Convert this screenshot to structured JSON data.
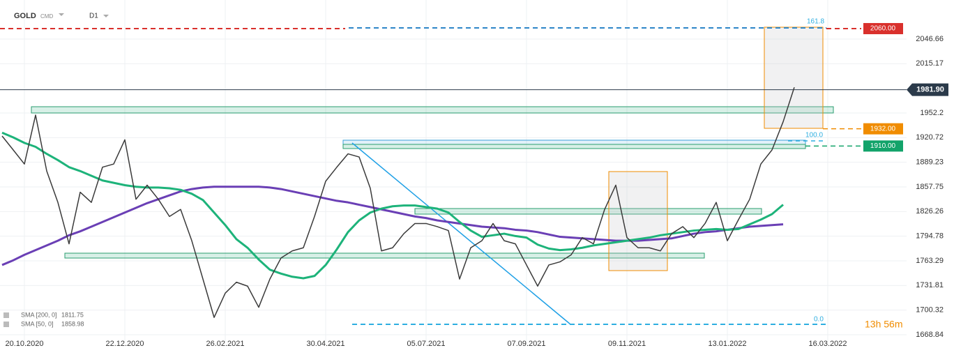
{
  "header": {
    "symbol": "GOLD",
    "instrument_type": "CMD",
    "timeframe": "D1"
  },
  "chart_data": {
    "type": "line",
    "categories": [
      null,
      null,
      "20.10.2020",
      null,
      null,
      null,
      null,
      null,
      null,
      null,
      null,
      "22.12.2020",
      null,
      null,
      null,
      null,
      null,
      null,
      null,
      null,
      "26.02.2021",
      null,
      null,
      null,
      null,
      null,
      null,
      null,
      null,
      "30.04.2021",
      null,
      null,
      null,
      null,
      null,
      null,
      null,
      null,
      "05.07.2021",
      null,
      null,
      null,
      null,
      null,
      null,
      null,
      null,
      "07.09.2021",
      null,
      null,
      null,
      null,
      null,
      null,
      null,
      null,
      "09.11.2021",
      null,
      null,
      null,
      null,
      null,
      null,
      null,
      null,
      "13.01.2022",
      null,
      null,
      null,
      null,
      null,
      null,
      null,
      null,
      "16.03.2022"
    ],
    "values": [
      1922.8,
      1905,
      1887,
      1949.5,
      1878,
      1838,
      1785,
      1851,
      1838,
      1883,
      1887,
      1918,
      1842,
      1860,
      1842,
      1820,
      1829,
      1789,
      1740,
      1691,
      1722,
      1736,
      1731,
      1704,
      1740,
      1767,
      1776,
      1780,
      1820,
      1865,
      1883,
      1900,
      1896,
      1856,
      1776,
      1780,
      1798,
      1811,
      1811,
      1807,
      1802,
      1740,
      1780,
      1789,
      1811,
      1789,
      1785,
      1758,
      1731,
      1758,
      1762,
      1771,
      1793,
      1785,
      1829,
      1860,
      1793,
      1780,
      1780,
      1776,
      1798,
      1807,
      1793,
      1811,
      1838,
      1789,
      1816,
      1842,
      1887,
      1905,
      1941,
      1985,
      null,
      null,
      null
    ],
    "color": "#3a3a3a",
    "series": [
      {
        "name": "SMA [200, 0]",
        "legend_value": 1811.75,
        "color": "#6a3fb5",
        "values": [
          1758,
          1764,
          1771,
          1777,
          1783,
          1789,
          1796,
          1801,
          1807,
          1813,
          1819,
          1825,
          1831,
          1837,
          1842,
          1847,
          1852,
          1855,
          1857,
          1858,
          1858,
          1858,
          1858,
          1858,
          1857,
          1855,
          1852,
          1849,
          1846,
          1843,
          1840,
          1838,
          1835,
          1832,
          1829,
          1826,
          1823,
          1820,
          1818,
          1815,
          1813,
          1811,
          1809,
          1807,
          1806,
          1805,
          1803,
          1802,
          1800,
          1797,
          1794,
          1793,
          1792,
          1791,
          1790,
          1789,
          1789,
          1789,
          1790,
          1791,
          1792,
          1795,
          1798,
          1800,
          1801,
          1803,
          1805,
          1807,
          1808,
          1809,
          1810,
          null,
          null,
          null,
          null
        ]
      },
      {
        "name": "SMA [50, 0]",
        "legend_value": 1858.98,
        "color": "#1db37a",
        "values": [
          1927,
          1921,
          1914,
          1909,
          1900,
          1892,
          1883,
          1878,
          1872,
          1866,
          1863,
          1860,
          1858,
          1857,
          1857,
          1856,
          1854,
          1849,
          1841,
          1825,
          1809,
          1791,
          1780,
          1765,
          1752,
          1747,
          1743,
          1741,
          1744,
          1758,
          1778,
          1800,
          1815,
          1825,
          1830,
          1833,
          1834,
          1834,
          1832,
          1830,
          1825,
          1813,
          1802,
          1794,
          1796,
          1798,
          1795,
          1793,
          1784,
          1779,
          1777,
          1778,
          1780,
          1783,
          1785,
          1787,
          1789,
          1791,
          1793,
          1796,
          1798,
          1800,
          1802,
          1803,
          1804,
          1803,
          1804,
          1810,
          1816,
          1823,
          1835,
          null,
          null,
          null,
          null
        ]
      }
    ],
    "ylim": [
      1659.93,
      2096.56
    ],
    "yticks": [
      2046.66,
      2015.17,
      1952.2,
      1920.72,
      1889.23,
      1857.75,
      1826.26,
      1794.78,
      1763.29,
      1731.81,
      1700.32,
      1668.84
    ],
    "grid": true,
    "levels": [
      {
        "value": 2060,
        "label": "2060.00",
        "color": "#d9302c"
      },
      {
        "value": 1932,
        "label": "1932.00",
        "color": "#f08c00"
      },
      {
        "value": 1910,
        "label": "1910.00",
        "color": "#12a36a"
      }
    ],
    "last_price": {
      "value": 1981.9,
      "label": "1981.90"
    },
    "fib_labels": [
      "161.8",
      "100.0",
      "0.0"
    ],
    "countdown": "13h 56m"
  }
}
